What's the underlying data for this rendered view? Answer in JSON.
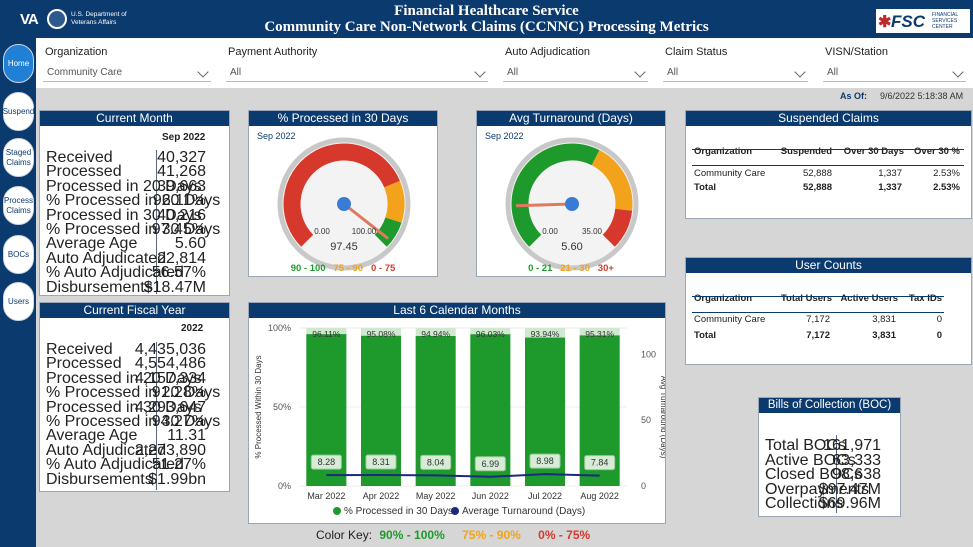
{
  "header": {
    "va_logo": "VA",
    "va_dept": "U.S. Department of Veterans Affairs",
    "title_line1": "Financial Healthcare Service",
    "title_line2": "Community Care Non-Network Claims (CCNNC) Processing Metrics",
    "fsc_logo": "FSC",
    "fsc_sub": "FINANCIAL SERVICES CENTER"
  },
  "sidebar": [
    {
      "label": "Home",
      "active": true
    },
    {
      "label": "Suspend",
      "active": false
    },
    {
      "label": "Staged Claims",
      "active": false
    },
    {
      "label": "Process Claims",
      "active": false
    },
    {
      "label": "BOCs",
      "active": false
    },
    {
      "label": "Users",
      "active": false
    }
  ],
  "filters": [
    {
      "label": "Organization",
      "value": "Community Care"
    },
    {
      "label": "Payment Authority",
      "value": "All"
    },
    {
      "label": "Auto Adjudication",
      "value": "All"
    },
    {
      "label": "Claim Status",
      "value": "All"
    },
    {
      "label": "VISN/Station",
      "value": "All"
    }
  ],
  "as_of": {
    "label": "As Of:",
    "value": "9/6/2022 5:18:38 AM"
  },
  "current_month": {
    "title": "Current Month",
    "period": "Sep 2022",
    "rows": [
      {
        "label": "Received",
        "value": "40,327"
      },
      {
        "label": "Processed",
        "value": "41,268"
      },
      {
        "label": "Processed in 20 Days",
        "value": "39,663"
      },
      {
        "label": "% Processed in 20 Days",
        "value": "96.11%"
      },
      {
        "label": "Processed in 30 Days",
        "value": "40,216"
      },
      {
        "label": "% Processed in 30 Days",
        "value": "97.45%"
      },
      {
        "label": "Average Age",
        "value": "5.60"
      },
      {
        "label": "Auto Adjudicated",
        "value": "22,814"
      },
      {
        "label": "% Auto Adjudicated",
        "value": "56.57%"
      },
      {
        "label": "Disbursements",
        "value": "$18.47M"
      }
    ]
  },
  "current_fy": {
    "title": "Current Fiscal Year",
    "period": "2022",
    "rows": [
      {
        "label": "Received",
        "value": "4,435,036"
      },
      {
        "label": "Processed",
        "value": "4,554,486"
      },
      {
        "label": "Processed in 20 Days",
        "value": "4,157,334"
      },
      {
        "label": "% Processed in 20 Days",
        "value": "91.28%"
      },
      {
        "label": "Processed in 30 Days",
        "value": "4,293,647"
      },
      {
        "label": "% Processed in 30 Days",
        "value": "94.27%"
      },
      {
        "label": "Average Age",
        "value": "11.31"
      },
      {
        "label": "Auto Adjudicated",
        "value": "2,273,890"
      },
      {
        "label": "% Auto Adjudicated",
        "value": "51.27%"
      },
      {
        "label": "Disbursements",
        "value": "$1.99bn"
      }
    ]
  },
  "gauge_processed": {
    "title": "% Processed in 30 Days",
    "period": "Sep 2022",
    "value": 97.45,
    "value_label": "97.45",
    "min_label": "0.00",
    "max_label": "100.00",
    "min": 0,
    "max": 100,
    "bands": [
      {
        "from": 0,
        "to": 75,
        "color": "#d6382b"
      },
      {
        "from": 75,
        "to": 90,
        "color": "#f2a21b"
      },
      {
        "from": 90,
        "to": 100,
        "color": "#1e9a2c"
      }
    ],
    "legend": [
      {
        "text": "90 - 100",
        "color": "#1e9a2c"
      },
      {
        "text": "75 - 90",
        "color": "#f2a21b"
      },
      {
        "text": "0 - 75",
        "color": "#d6382b"
      }
    ]
  },
  "gauge_turnaround": {
    "title": "Avg Turnaround (Days)",
    "period": "Sep 2022",
    "value": 5.6,
    "value_label": "5.60",
    "min_label": "0.00",
    "max_label": "35.00",
    "min": 0,
    "max": 35,
    "bands": [
      {
        "from": 0,
        "to": 21,
        "color": "#1e9a2c"
      },
      {
        "from": 21,
        "to": 30,
        "color": "#f2a21b"
      },
      {
        "from": 30,
        "to": 35,
        "color": "#d6382b"
      }
    ],
    "legend": [
      {
        "text": "0 - 21",
        "color": "#1e9a2c"
      },
      {
        "text": "21 - 30",
        "color": "#f2a21b"
      },
      {
        "text": "30+",
        "color": "#d6382b"
      }
    ]
  },
  "suspended": {
    "title": "Suspended Claims",
    "headers": [
      "Organization",
      "Suspended",
      "Over 30 Days",
      "Over 30 %"
    ],
    "rows": [
      [
        "Community Care",
        "52,888",
        "1,337",
        "2.53%"
      ]
    ],
    "total": [
      "Total",
      "52,888",
      "1,337",
      "2.53%"
    ]
  },
  "user_counts": {
    "title": "User Counts",
    "headers": [
      "Organization",
      "Total Users",
      "Active Users",
      "Tax IDs"
    ],
    "rows": [
      [
        "Community Care",
        "7,172",
        "3,831",
        "0"
      ]
    ],
    "total": [
      "Total",
      "7,172",
      "3,831",
      "0"
    ]
  },
  "boc": {
    "title": "Bills of Collection (BOC)",
    "rows": [
      {
        "label": "Total BOCs",
        "value": "161,971"
      },
      {
        "label": "Active BOCs",
        "value": "63,333"
      },
      {
        "label": "Closed BOCs",
        "value": "98,638"
      },
      {
        "label": "Overpayments",
        "value": "$97.47M"
      },
      {
        "label": "Collections",
        "value": "$69.96M"
      }
    ]
  },
  "chart_data": {
    "type": "bar",
    "title": "Last 6 Calendar Months",
    "categories": [
      "Mar 2022",
      "Apr 2022",
      "May 2022",
      "Jun 2022",
      "Jul 2022",
      "Aug 2022"
    ],
    "series": [
      {
        "name": "% Processed in 30 Days",
        "type": "bar",
        "axis": "left",
        "color": "#1e9a2c",
        "values": [
          96.11,
          95.08,
          94.94,
          96.03,
          93.94,
          95.31
        ],
        "labels": [
          "96.11%",
          "95.08%",
          "94.94%",
          "96.03%",
          "93.94%",
          "95.31%"
        ]
      },
      {
        "name": "Average Turnaround (Days)",
        "type": "line",
        "axis": "right",
        "color": "#1a2a80",
        "values": [
          8.28,
          8.31,
          8.04,
          6.99,
          8.98,
          7.84
        ],
        "labels": [
          "8.28",
          "8.31",
          "8.04",
          "6.99",
          "8.98",
          "7.84"
        ]
      }
    ],
    "ylabel": "% Processed Within 30 Days",
    "y2label": "Avg Turnaround (Days)",
    "ylim": [
      0,
      100
    ],
    "y2lim": [
      0,
      120
    ],
    "yticks": [
      "0%",
      "50%",
      "100%"
    ],
    "y2ticks": [
      "0",
      "50",
      "100"
    ]
  },
  "color_key": {
    "label": "Color Key:",
    "green": "90% - 100%",
    "orange": "75% - 90%",
    "red": "0% - 75%"
  }
}
